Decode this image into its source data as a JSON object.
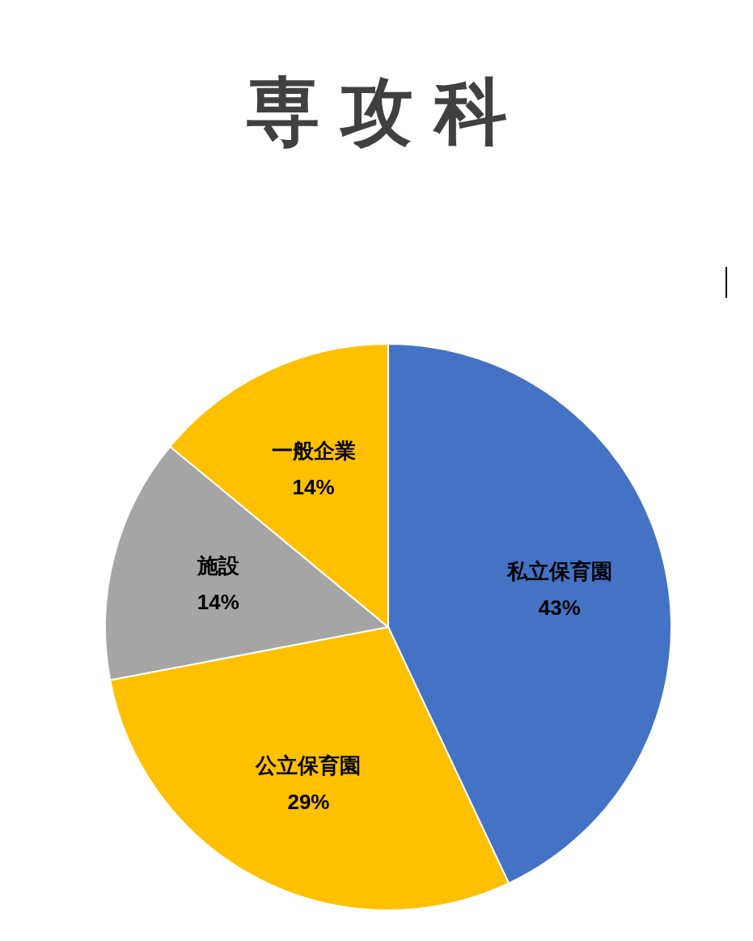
{
  "chart_data": {
    "type": "pie",
    "title": "専攻科",
    "categories": [
      "私立保育園",
      "公立保育園",
      "施設",
      "一般企業"
    ],
    "values": [
      43,
      29,
      14,
      14
    ],
    "colors": [
      "#4472c4",
      "#ffc000",
      "#a5a5a5",
      "#ffc000"
    ],
    "value_labels": [
      "43%",
      "29%",
      "14%",
      "14%"
    ]
  }
}
